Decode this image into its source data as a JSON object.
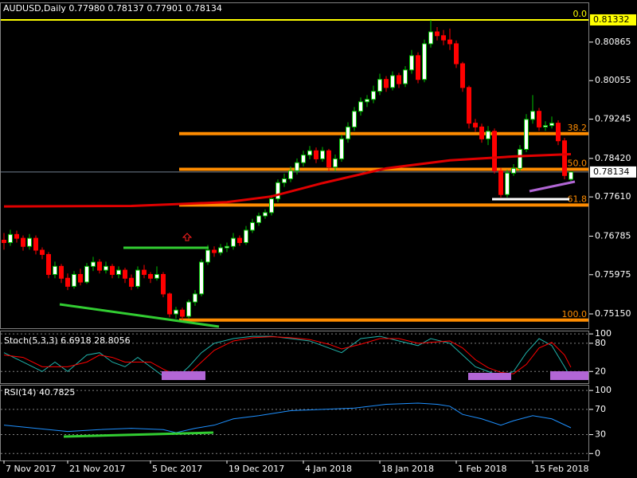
{
  "chart_data": [
    {
      "type": "candlestick",
      "title": "AUDUSD,Daily  0.77980 0.78137 0.77901 0.78134",
      "categories": [
        "7 Nov 2017",
        null,
        null,
        null,
        null,
        null,
        null,
        null,
        null,
        null,
        "21 Nov 2017",
        null,
        null,
        null,
        null,
        null,
        null,
        null,
        null,
        null,
        null,
        null,
        null,
        "5 Dec 2017",
        null,
        null,
        null,
        null,
        null,
        null,
        null,
        null,
        null,
        null,
        null,
        "19 Dec 2017",
        null,
        null,
        null,
        null,
        null,
        null,
        null,
        null,
        null,
        null,
        null,
        "4 Jan 2018",
        null,
        null,
        null,
        null,
        null,
        null,
        null,
        null,
        null,
        null,
        null,
        "18 Jan 2018",
        null,
        null,
        null,
        null,
        null,
        null,
        null,
        null,
        null,
        null,
        null,
        "1 Feb 2018",
        null,
        null,
        null,
        null,
        null,
        null,
        null,
        null,
        null,
        null,
        null,
        "15 Feb 2018",
        null,
        null,
        null,
        null,
        null,
        null
      ],
      "open": [
        0.767,
        0.7665,
        0.7682,
        0.7674,
        0.7657,
        0.7674,
        0.7649,
        0.764,
        0.7598,
        0.7615,
        0.759,
        0.7573,
        0.7598,
        0.7582,
        0.7615,
        0.7624,
        0.7607,
        0.7615,
        0.7598,
        0.7607,
        0.759,
        0.7573,
        0.7607,
        0.7598,
        0.759,
        0.7598,
        0.7557,
        0.7515,
        0.7523,
        0.751,
        0.754,
        0.7557,
        0.7624,
        0.7649,
        0.7644,
        0.7654,
        0.7657,
        0.7674,
        0.7665,
        0.7691,
        0.7707,
        0.7721,
        0.7728,
        0.7757,
        0.7791,
        0.7799,
        0.7816,
        0.7833,
        0.7849,
        0.7858,
        0.7841,
        0.7858,
        0.7824,
        0.7841,
        0.7883,
        0.7908,
        0.7941,
        0.7961,
        0.7966,
        0.7983,
        0.8008,
        0.7991,
        0.8016,
        0.7999,
        0.8028,
        0.8058,
        0.8008,
        0.8083,
        0.8108,
        0.81,
        0.8091,
        0.8083,
        0.8041,
        0.7991,
        0.7916,
        0.7908,
        0.7883,
        0.7899,
        0.7816,
        0.7766,
        0.7811,
        0.7821,
        0.7861,
        0.7924,
        0.7941,
        0.7908,
        0.7911,
        0.7916,
        0.7879,
        0.7798
      ],
      "high": [
        0.7685,
        0.7692,
        0.769,
        0.768,
        0.7683,
        0.768,
        0.7655,
        0.7645,
        0.7625,
        0.762,
        0.76,
        0.7605,
        0.761,
        0.7622,
        0.7635,
        0.763,
        0.7625,
        0.762,
        0.7615,
        0.7612,
        0.7598,
        0.7615,
        0.7618,
        0.7603,
        0.7615,
        0.7603,
        0.756,
        0.753,
        0.7528,
        0.7545,
        0.7565,
        0.763,
        0.766,
        0.7657,
        0.7662,
        0.7665,
        0.7685,
        0.768,
        0.77,
        0.7715,
        0.7728,
        0.7735,
        0.7765,
        0.7798,
        0.781,
        0.7825,
        0.7842,
        0.7858,
        0.7868,
        0.7865,
        0.7866,
        0.7862,
        0.785,
        0.7892,
        0.7918,
        0.795,
        0.797,
        0.7975,
        0.7995,
        0.802,
        0.8015,
        0.8025,
        0.8022,
        0.8036,
        0.807,
        0.8065,
        0.8092,
        0.8133,
        0.8118,
        0.8112,
        0.8115,
        0.809,
        0.8045,
        0.7995,
        0.7925,
        0.7915,
        0.791,
        0.7905,
        0.7822,
        0.7818,
        0.783,
        0.787,
        0.7935,
        0.7975,
        0.7948,
        0.792,
        0.793,
        0.7922,
        0.7885,
        0.78137
      ],
      "low": [
        0.765,
        0.7658,
        0.7665,
        0.7648,
        0.765,
        0.764,
        0.763,
        0.759,
        0.759,
        0.758,
        0.7565,
        0.7568,
        0.7575,
        0.7578,
        0.7605,
        0.76,
        0.76,
        0.759,
        0.759,
        0.758,
        0.7565,
        0.7568,
        0.759,
        0.758,
        0.7585,
        0.755,
        0.7508,
        0.7505,
        0.7502,
        0.7505,
        0.7532,
        0.7552,
        0.7618,
        0.7635,
        0.7638,
        0.7645,
        0.765,
        0.7658,
        0.766,
        0.7685,
        0.77,
        0.7715,
        0.7722,
        0.775,
        0.7782,
        0.7792,
        0.7808,
        0.7825,
        0.784,
        0.7832,
        0.7835,
        0.7815,
        0.7815,
        0.7835,
        0.7875,
        0.79,
        0.7932,
        0.795,
        0.7958,
        0.7975,
        0.7982,
        0.7985,
        0.799,
        0.7992,
        0.802,
        0.8,
        0.8002,
        0.8075,
        0.809,
        0.808,
        0.807,
        0.8032,
        0.7982,
        0.7905,
        0.7898,
        0.7875,
        0.787,
        0.781,
        0.776,
        0.776,
        0.7805,
        0.7815,
        0.7855,
        0.7915,
        0.79,
        0.79,
        0.7905,
        0.787,
        0.7798,
        0.77901
      ],
      "close": [
        0.7665,
        0.7682,
        0.7674,
        0.7657,
        0.7674,
        0.7649,
        0.764,
        0.7598,
        0.7615,
        0.759,
        0.7573,
        0.7598,
        0.7582,
        0.7615,
        0.7624,
        0.7607,
        0.7615,
        0.7598,
        0.7607,
        0.759,
        0.7573,
        0.7607,
        0.7598,
        0.759,
        0.7598,
        0.7557,
        0.7515,
        0.7523,
        0.751,
        0.754,
        0.7557,
        0.7624,
        0.7649,
        0.7644,
        0.7654,
        0.7657,
        0.7674,
        0.7665,
        0.7691,
        0.7707,
        0.7721,
        0.7728,
        0.7757,
        0.7791,
        0.7799,
        0.7816,
        0.7833,
        0.7849,
        0.7858,
        0.7841,
        0.7858,
        0.7824,
        0.7841,
        0.7883,
        0.7908,
        0.7941,
        0.7961,
        0.7966,
        0.7983,
        0.8008,
        0.7991,
        0.8016,
        0.7999,
        0.8028,
        0.8058,
        0.8008,
        0.8083,
        0.8108,
        0.81,
        0.8091,
        0.8083,
        0.8041,
        0.7991,
        0.7916,
        0.7908,
        0.7883,
        0.7899,
        0.7816,
        0.7766,
        0.7811,
        0.7821,
        0.7861,
        0.7924,
        0.7941,
        0.7908,
        0.7911,
        0.7916,
        0.7879,
        0.7806,
        0.78134
      ],
      "up_color": "#00c000",
      "down_color": "#ff0000",
      "ma": {
        "color": "#e00000",
        "x": [
          0,
          20,
          35,
          42,
          50,
          60,
          70,
          80,
          89
        ],
        "values": [
          0.7741,
          0.7742,
          0.775,
          0.7762,
          0.779,
          0.7821,
          0.7838,
          0.7846,
          0.7851
        ]
      },
      "levels": [
        {
          "value": 0.81332,
          "label": "0.0",
          "color": "#ffff00"
        },
        {
          "value": 0.7894,
          "label": "38.2",
          "color": "#ff8c00"
        },
        {
          "value": 0.7819,
          "label": "50.0",
          "color": "#ff8c00"
        },
        {
          "value": 0.7744,
          "label": "61.8",
          "color": "#ff8c00"
        },
        {
          "value": 0.7502,
          "label": "100.0",
          "color": "#ff8c00"
        }
      ],
      "ylim": [
        0.74849,
        0.817
      ],
      "yticks": [
        0.80865,
        {
          "value": 0.80055,
          "label": "0.80055"
        },
        0.79245,
        {
          "value": 0.7842,
          "label": "0.78420"
        },
        {
          "value": 0.7761,
          "label": "0.77610"
        },
        0.76785,
        0.75975,
        {
          "value": 0.7515,
          "label": "0.75150"
        }
      ]
    },
    {
      "type": "line",
      "title": "Stoch(5,3,3) 6.6918 28.8056",
      "ylim": [
        -5,
        107
      ],
      "yticks": [
        100,
        80,
        20
      ],
      "series": [
        {
          "color": "#20b2aa",
          "x": [
            0,
            3,
            6,
            8,
            10,
            13,
            15,
            17,
            19,
            21,
            23,
            25,
            27,
            29,
            31,
            33,
            36,
            39,
            42,
            45,
            48,
            51,
            53,
            56,
            59,
            62,
            65,
            67,
            70,
            72,
            74,
            76,
            78,
            80,
            82,
            84,
            86,
            88,
            89
          ],
          "values": [
            60,
            40,
            20,
            40,
            20,
            55,
            60,
            40,
            30,
            50,
            30,
            10,
            5,
            30,
            60,
            80,
            90,
            95,
            95,
            90,
            85,
            70,
            60,
            90,
            95,
            85,
            75,
            90,
            80,
            55,
            30,
            20,
            10,
            20,
            60,
            90,
            75,
            30,
            6.6918
          ]
        },
        {
          "color": "#ff0000",
          "x": [
            0,
            3,
            6,
            8,
            10,
            13,
            15,
            17,
            19,
            21,
            23,
            25,
            27,
            29,
            31,
            33,
            36,
            39,
            42,
            45,
            48,
            51,
            53,
            56,
            59,
            62,
            65,
            67,
            70,
            72,
            74,
            76,
            78,
            80,
            82,
            84,
            86,
            88,
            89
          ],
          "values": [
            55,
            50,
            30,
            30,
            30,
            40,
            55,
            50,
            40,
            40,
            40,
            25,
            12,
            15,
            40,
            65,
            85,
            92,
            94,
            92,
            88,
            78,
            68,
            78,
            90,
            90,
            80,
            82,
            85,
            70,
            45,
            28,
            18,
            15,
            35,
            70,
            82,
            55,
            28.8056
          ]
        }
      ]
    },
    {
      "type": "line",
      "title": "RSI(14) 40.7825",
      "ylim": [
        -11,
        109
      ],
      "yticks": [
        100,
        70,
        30,
        0
      ],
      "series": [
        {
          "color": "#1e90ff",
          "x": [
            0,
            5,
            10,
            15,
            20,
            25,
            27,
            30,
            33,
            36,
            40,
            45,
            50,
            55,
            60,
            65,
            68,
            70,
            72,
            75,
            78,
            80,
            83,
            86,
            89
          ],
          "values": [
            45,
            40,
            35,
            38,
            40,
            38,
            33,
            40,
            45,
            55,
            60,
            68,
            70,
            72,
            78,
            80,
            78,
            75,
            62,
            55,
            45,
            52,
            60,
            55,
            40.7825
          ]
        }
      ]
    }
  ]
}
